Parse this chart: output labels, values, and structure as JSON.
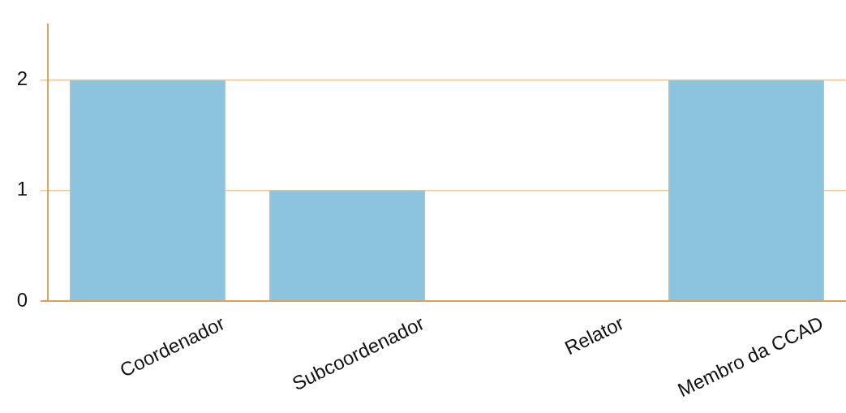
{
  "chart_data": {
    "type": "bar",
    "categories": [
      "Coordenador",
      "Subcoordenador",
      "Relator",
      "Membro da CCAD"
    ],
    "values": [
      2,
      1,
      0,
      2
    ],
    "color": "#8cc4df",
    "ylim": [
      0,
      2.5
    ],
    "yticks": [
      0,
      1,
      2
    ],
    "grid": "y"
  }
}
